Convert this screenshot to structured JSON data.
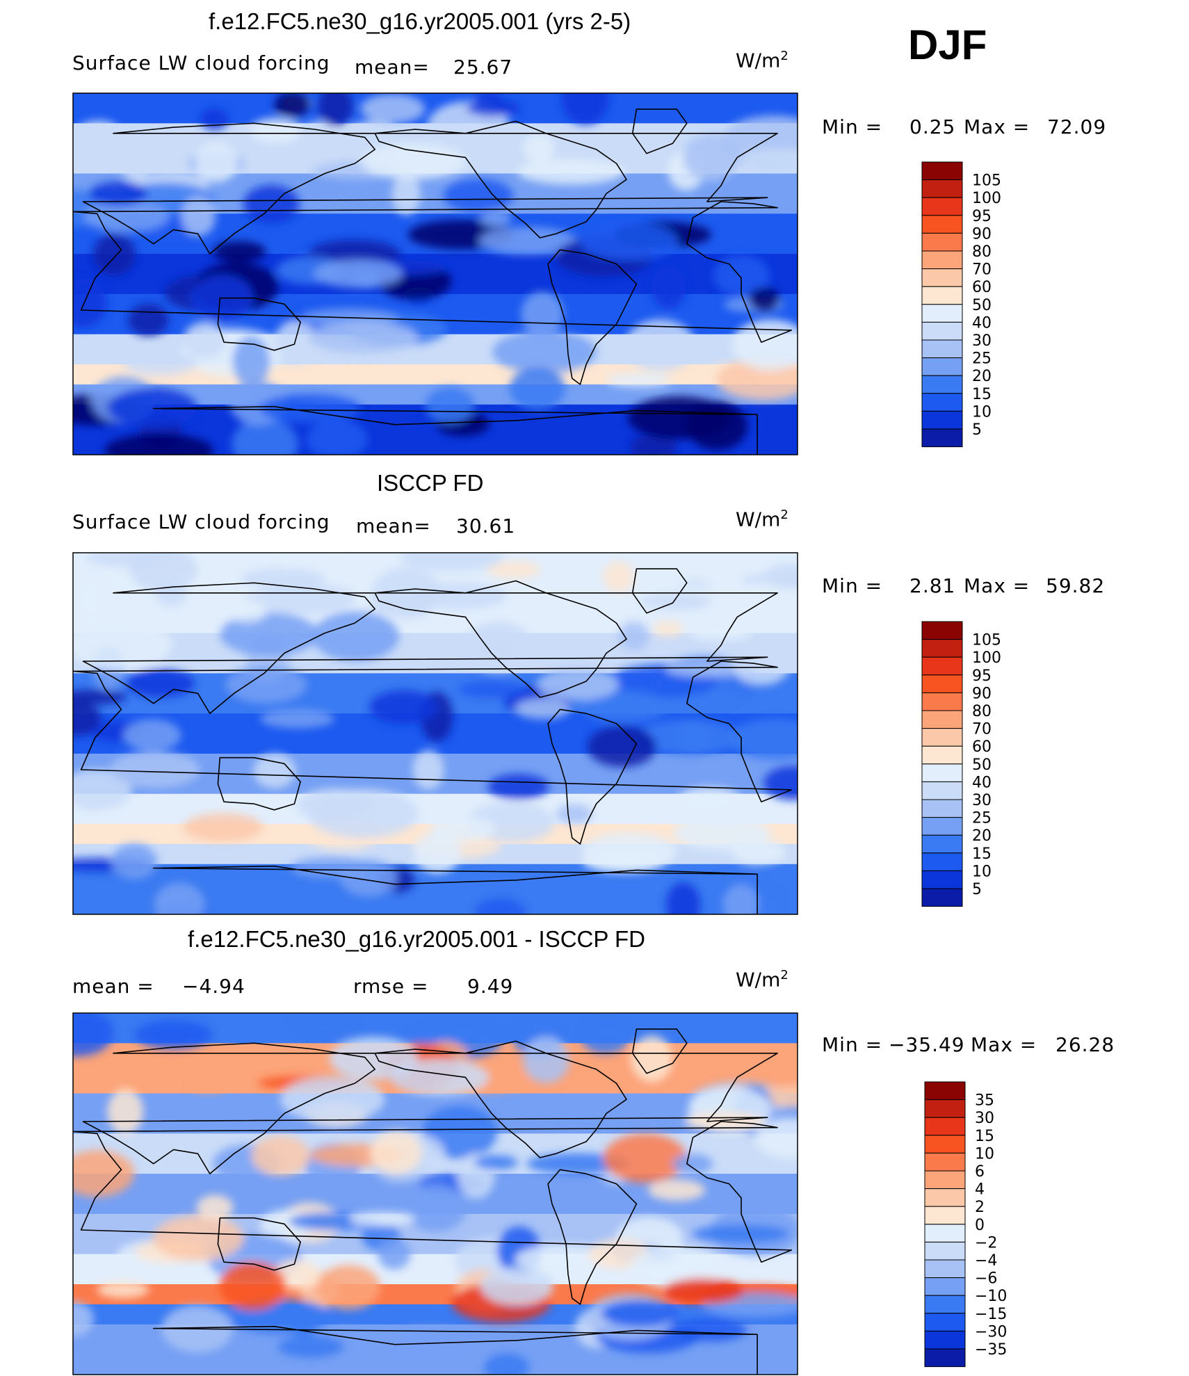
{
  "season": "DJF",
  "colors": {
    "abs_scale": [
      "#00006a",
      "#0a1ca8",
      "#0a36dc",
      "#1c5af0",
      "#3a7af2",
      "#76a0f4",
      "#a8c2f6",
      "#cadcf8",
      "#e2eefc",
      "#fde6d2",
      "#fcc8aa",
      "#fca47a",
      "#fb7a4c",
      "#f85422",
      "#e8361a",
      "#c22010",
      "#8a0404"
    ],
    "diff_scale": [
      "#00006a",
      "#0a1ca8",
      "#0a36dc",
      "#1c5af0",
      "#3a7af2",
      "#76a0f4",
      "#a8c2f6",
      "#cadcf8",
      "#e2eefc",
      "#fde6d2",
      "#fcc8aa",
      "#fca47a",
      "#fb7a4c",
      "#f85422",
      "#e8361a",
      "#c22010",
      "#8a0404"
    ],
    "coastline": "#000000",
    "frame": "#000000"
  },
  "chart_data": [
    {
      "type": "heatmap",
      "title": "f.e12.FC5.ne30_g16.yr2005.001 (yrs 2-5)",
      "variable_label": "Surface LW cloud forcing",
      "mean_label": "mean=",
      "mean_value": "25.67",
      "units_base": "W/m",
      "units_exp": "2",
      "min_label": "Min =",
      "min_value": "0.25",
      "max_label": "Max =",
      "max_value": "72.09",
      "colorbar_levels": [
        "105",
        "100",
        "95",
        "90",
        "80",
        "70",
        "60",
        "50",
        "40",
        "30",
        "25",
        "20",
        "15",
        "10",
        "5"
      ],
      "zones_lat_deg": [
        [
          90,
          75
        ],
        [
          75,
          50
        ],
        [
          50,
          30
        ],
        [
          30,
          10
        ],
        [
          10,
          -10
        ],
        [
          -10,
          -30
        ],
        [
          -30,
          -45
        ],
        [
          -45,
          -55
        ],
        [
          -55,
          -65
        ],
        [
          -65,
          -90
        ]
      ],
      "zone_values": [
        12,
        35,
        20,
        12,
        8,
        12,
        35,
        55,
        20,
        5
      ]
    },
    {
      "type": "heatmap",
      "title": "ISCCP FD",
      "variable_label": "Surface LW cloud forcing",
      "mean_label": "mean=",
      "mean_value": "30.61",
      "units_base": "W/m",
      "units_exp": "2",
      "min_label": "Min =",
      "min_value": "2.81",
      "max_label": "Max =",
      "max_value": "59.82",
      "colorbar_levels": [
        "105",
        "100",
        "95",
        "90",
        "80",
        "70",
        "60",
        "50",
        "40",
        "30",
        "25",
        "20",
        "15",
        "10",
        "5"
      ],
      "zones_lat_deg": [
        [
          90,
          75
        ],
        [
          75,
          50
        ],
        [
          50,
          30
        ],
        [
          30,
          10
        ],
        [
          10,
          -10
        ],
        [
          -10,
          -30
        ],
        [
          -30,
          -45
        ],
        [
          -45,
          -55
        ],
        [
          -55,
          -65
        ],
        [
          -65,
          -90
        ]
      ],
      "zone_values": [
        45,
        40,
        30,
        15,
        12,
        20,
        40,
        55,
        35,
        15
      ]
    },
    {
      "type": "heatmap",
      "title": "f.e12.FC5.ne30_g16.yr2005.001 - ISCCP FD",
      "mean_label": "mean =",
      "mean_value": "−4.94",
      "rmse_label": "rmse =",
      "rmse_value": "9.49",
      "units_base": "W/m",
      "units_exp": "2",
      "min_label": "Min =",
      "min_value": "−35.49",
      "max_label": "Max =",
      "max_value": "26.28",
      "colorbar_levels": [
        "35",
        "30",
        "15",
        "10",
        "6",
        "4",
        "2",
        "0",
        "−2",
        "−4",
        "−6",
        "−10",
        "−15",
        "−30",
        "−35"
      ],
      "zones_lat_deg": [
        [
          90,
          75
        ],
        [
          75,
          50
        ],
        [
          50,
          30
        ],
        [
          30,
          10
        ],
        [
          10,
          -10
        ],
        [
          -10,
          -30
        ],
        [
          -30,
          -45
        ],
        [
          -45,
          -55
        ],
        [
          -55,
          -65
        ],
        [
          -65,
          -90
        ]
      ],
      "zone_values": [
        -15,
        5,
        -8,
        -4,
        -8,
        -6,
        -2,
        6,
        -15,
        -10
      ]
    }
  ]
}
